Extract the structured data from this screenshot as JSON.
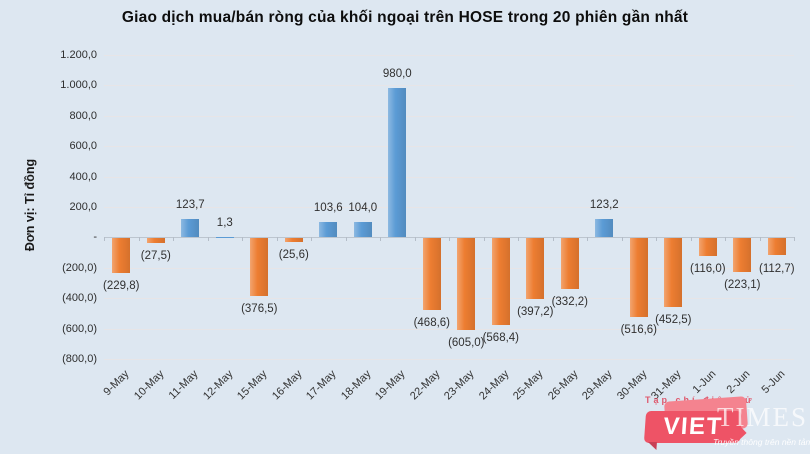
{
  "chart_data": {
    "type": "bar",
    "title": "Giao dịch mua/bán ròng của khối ngoại trên HOSE trong 20 phiên gần nhất",
    "ylabel": "Đơn vị: Tỉ đồng",
    "categories": [
      "9-May",
      "10-May",
      "11-May",
      "12-May",
      "15-May",
      "16-May",
      "17-May",
      "18-May",
      "19-May",
      "22-May",
      "23-May",
      "24-May",
      "25-May",
      "26-May",
      "29-May",
      "30-May",
      "31-May",
      "1-Jun",
      "2-Jun",
      "5-Jun"
    ],
    "values": [
      -229.8,
      -27.5,
      123.7,
      1.3,
      -376.5,
      -25.6,
      103.6,
      104.0,
      980.0,
      -468.6,
      -605.0,
      -568.4,
      -397.2,
      -332.2,
      123.2,
      -516.6,
      -452.5,
      -116.0,
      -223.1,
      -112.7
    ],
    "value_labels": [
      "(229,8)",
      "(27,5)",
      "123,7",
      "1,3",
      "(376,5)",
      "(25,6)",
      "103,6",
      "104,0",
      "980,0",
      "(468,6)",
      "(605,0)",
      "(568,4)",
      "(397,2)",
      "(332,2)",
      "123,2",
      "(516,6)",
      "(452,5)",
      "(116,0)",
      "(223,1)",
      "(112,7)"
    ],
    "y_axis": {
      "min": -800,
      "max": 1200,
      "step": 200,
      "tick_labels": [
        "1.200,0",
        "1.000,0",
        "800,0",
        "600,0",
        "400,0",
        "200,0",
        "-",
        "(200,0)",
        "(400,0)",
        "(600,0)",
        "(800,0)"
      ]
    },
    "grid": true,
    "legend": "none",
    "colors": {
      "positive_bar": "#5b9bd5",
      "negative_bar": "#ed7d31",
      "background": "#dde7f1"
    }
  },
  "watermark": {
    "publisher_label": "Tạp chí điện tử",
    "brand_primary": "VIET",
    "brand_secondary": "TIMES",
    "tagline": "Truyền thông trên nền tảng số",
    "brand_color": "#ee5366"
  }
}
